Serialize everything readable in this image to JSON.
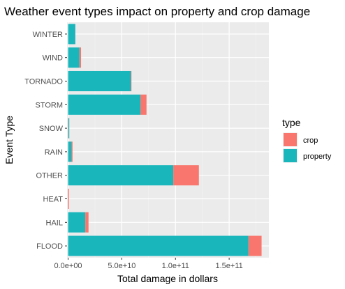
{
  "chart_data": {
    "type": "bar",
    "orientation": "horizontal",
    "stacked": true,
    "title": "Weather event types impact on property and crop damage",
    "xlabel": "Total damage in dollars",
    "ylabel": "Event Type",
    "categories": [
      "FLOOD",
      "HAIL",
      "HEAT",
      "OTHER",
      "RAIN",
      "SNOW",
      "STORM",
      "TORNADO",
      "WIND",
      "WINTER"
    ],
    "series": [
      {
        "name": "property",
        "color": "#19b6bc",
        "values": [
          168000000000,
          16000000000,
          0,
          98000000000,
          3200000000,
          1000000000,
          67500000000,
          58500000000,
          10500000000,
          6700000000
        ]
      },
      {
        "name": "crop",
        "color": "#f8766d",
        "values": [
          12200000000,
          3000000000,
          900000000,
          23800000000,
          900000000,
          150000000,
          5500000000,
          500000000,
          1500000000,
          100000000
        ]
      }
    ],
    "xlim": [
      -1000000000,
      187000000000
    ],
    "x_ticks": [
      0,
      50000000000,
      100000000000,
      150000000000
    ],
    "x_tick_labels": [
      "0.0e+00",
      "5.0e+10",
      "1.0e+11",
      "1.5e+11"
    ],
    "grid": true,
    "legend": {
      "title": "type",
      "position": "right",
      "entries": [
        "crop",
        "property"
      ]
    },
    "panel_color": "#ebebeb"
  }
}
